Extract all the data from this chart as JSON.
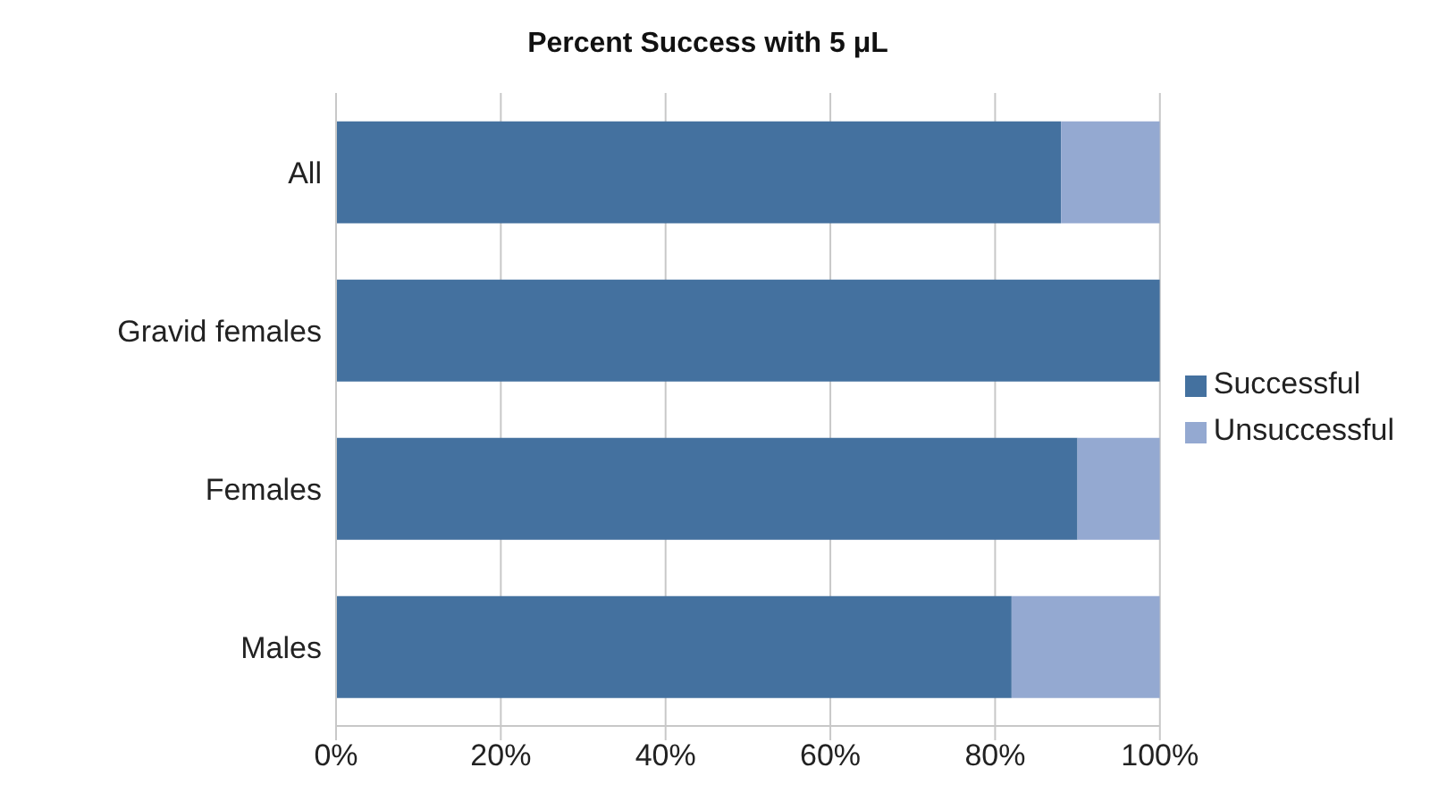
{
  "chart_data": {
    "type": "bar",
    "orientation": "horizontal",
    "stacked": true,
    "title": "Percent Success with 5 μL",
    "categories": [
      "All",
      "Gravid females",
      "Females",
      "Males"
    ],
    "series": [
      {
        "name": "Successful",
        "color": "#44719f",
        "values": [
          88,
          100,
          90,
          82
        ]
      },
      {
        "name": "Unsuccessful",
        "color": "#94a9d1",
        "values": [
          12,
          0,
          10,
          18
        ]
      }
    ],
    "xlim": [
      0,
      100
    ],
    "xticks": [
      {
        "value": 0,
        "label": "0%"
      },
      {
        "value": 20,
        "label": "20%"
      },
      {
        "value": 40,
        "label": "40%"
      },
      {
        "value": 60,
        "label": "60%"
      },
      {
        "value": 80,
        "label": "80%"
      },
      {
        "value": 100,
        "label": "100%"
      }
    ],
    "grid": "x",
    "legend": "right"
  }
}
